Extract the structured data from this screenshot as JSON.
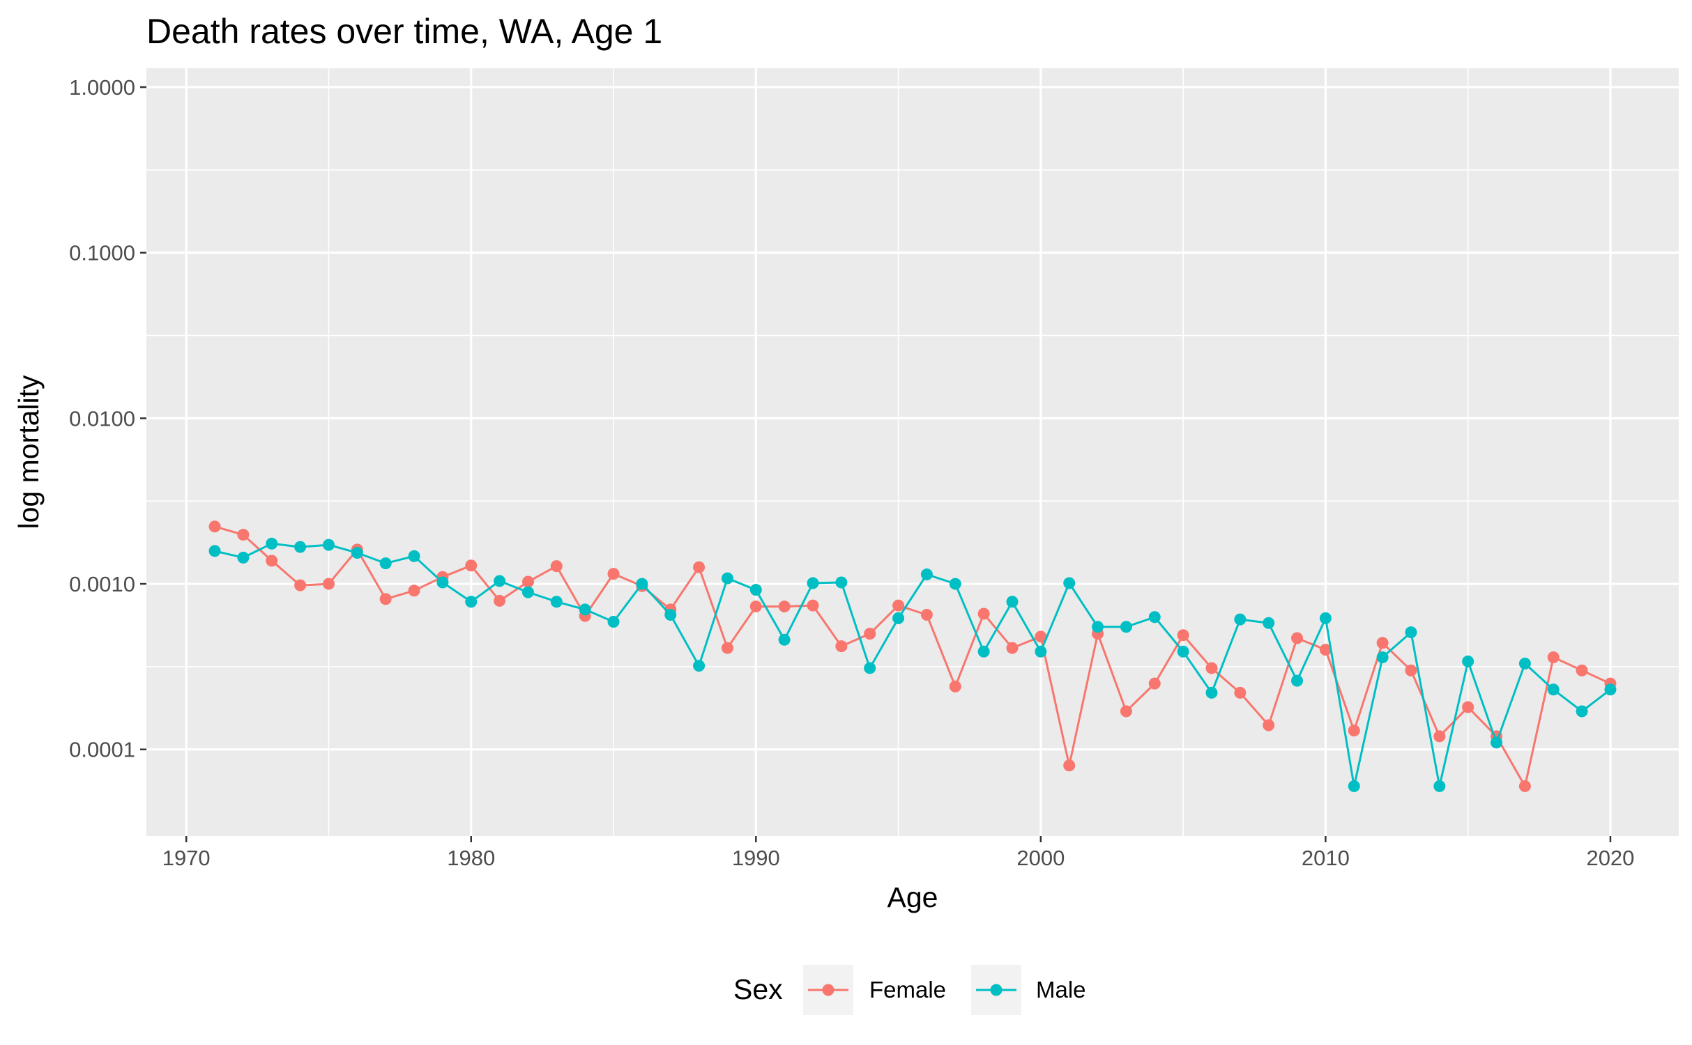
{
  "chart_data": {
    "type": "line",
    "title": "Death rates over time, WA, Age 1",
    "xlabel": "Age",
    "ylabel": "log mortality",
    "y_scale": "log10",
    "x_ticks": [
      1970,
      1980,
      1990,
      2000,
      2010,
      2020
    ],
    "y_ticks": [
      {
        "value": 0.0001,
        "label": "0.0001"
      },
      {
        "value": 0.001,
        "label": "0.0010"
      },
      {
        "value": 0.01,
        "label": "0.0100"
      },
      {
        "value": 0.1,
        "label": "0.1000"
      },
      {
        "value": 1,
        "label": "1.0000"
      }
    ],
    "xlim": [
      1968.6,
      2022.4
    ],
    "ylim": [
      3e-05,
      1.3
    ],
    "grid": true,
    "legend": {
      "title": "Sex",
      "position": "bottom"
    },
    "x": [
      1971,
      1972,
      1973,
      1974,
      1975,
      1976,
      1977,
      1978,
      1979,
      1980,
      1981,
      1982,
      1983,
      1984,
      1985,
      1986,
      1987,
      1988,
      1989,
      1990,
      1991,
      1992,
      1993,
      1994,
      1995,
      1996,
      1997,
      1998,
      1999,
      2000,
      2001,
      2002,
      2003,
      2004,
      2005,
      2006,
      2007,
      2008,
      2009,
      2010,
      2011,
      2012,
      2013,
      2014,
      2015,
      2016,
      2017,
      2018,
      2019,
      2020
    ],
    "series": [
      {
        "name": "Female",
        "color": "#F8766D",
        "values": [
          0.00222,
          0.00198,
          0.00138,
          0.00098,
          0.001,
          0.00161,
          0.00081,
          0.00091,
          0.0011,
          0.00129,
          0.00079,
          0.00103,
          0.00128,
          0.00064,
          0.00115,
          0.00097,
          0.0007,
          0.00126,
          0.00041,
          0.00073,
          0.00073,
          0.00074,
          0.00042,
          0.0005,
          0.00074,
          0.00065,
          0.00024,
          0.00066,
          0.00041,
          0.00048,
          8e-05,
          0.0005,
          0.00017,
          0.00025,
          0.00049,
          0.00031,
          0.00022,
          0.00014,
          0.00047,
          0.0004,
          0.00013,
          0.00044,
          0.0003,
          0.00012,
          0.00018,
          0.00012,
          6e-05,
          0.00036,
          0.0003,
          0.00025
        ]
      },
      {
        "name": "Male",
        "color": "#00BFC4",
        "values": [
          0.00158,
          0.00144,
          0.00175,
          0.00167,
          0.00172,
          0.00154,
          0.00133,
          0.00147,
          0.00102,
          0.00078,
          0.00104,
          0.00089,
          0.00078,
          0.0007,
          0.00059,
          0.001,
          0.00065,
          0.00032,
          0.00108,
          0.00092,
          0.00046,
          0.00101,
          0.00102,
          0.00031,
          0.00062,
          0.00114,
          0.001,
          0.00039,
          0.00078,
          0.00039,
          0.00101,
          0.00055,
          0.00055,
          0.00063,
          0.00039,
          0.00022,
          0.00061,
          0.00058,
          0.00026,
          0.00062,
          6e-05,
          0.00036,
          0.00051,
          6e-05,
          0.00034,
          0.00011,
          0.00033,
          0.00023,
          0.00017,
          0.00023
        ]
      }
    ]
  }
}
